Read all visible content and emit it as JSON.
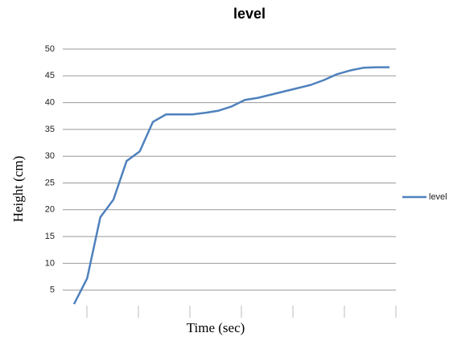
{
  "chart_data": {
    "type": "line",
    "title": "level",
    "y_label": "Height (cm)",
    "x_label": "Time (sec)",
    "categories": [
      null,
      null,
      null,
      null,
      null,
      null,
      null,
      null,
      null,
      null,
      null,
      null,
      null,
      null,
      null,
      null,
      null,
      null,
      null,
      null,
      null,
      null,
      null,
      null,
      null
    ],
    "series": [
      {
        "name": "level",
        "color": "#4f81bd",
        "values": [
          2.4,
          7.2,
          18.6,
          21.9,
          29.1,
          30.9,
          36.4,
          37.8,
          37.8,
          37.8,
          38.1,
          38.5,
          39.3,
          40.5,
          40.9,
          41.5,
          42.1,
          42.7,
          43.3,
          44.2,
          45.3,
          46.0,
          46.5,
          46.6,
          46.6
        ]
      }
    ],
    "ylim": [
      0,
      50
    ],
    "yticks": [
      5,
      10,
      15,
      20,
      25,
      30,
      35,
      40,
      45,
      50
    ],
    "grid": true,
    "legend": "right"
  }
}
